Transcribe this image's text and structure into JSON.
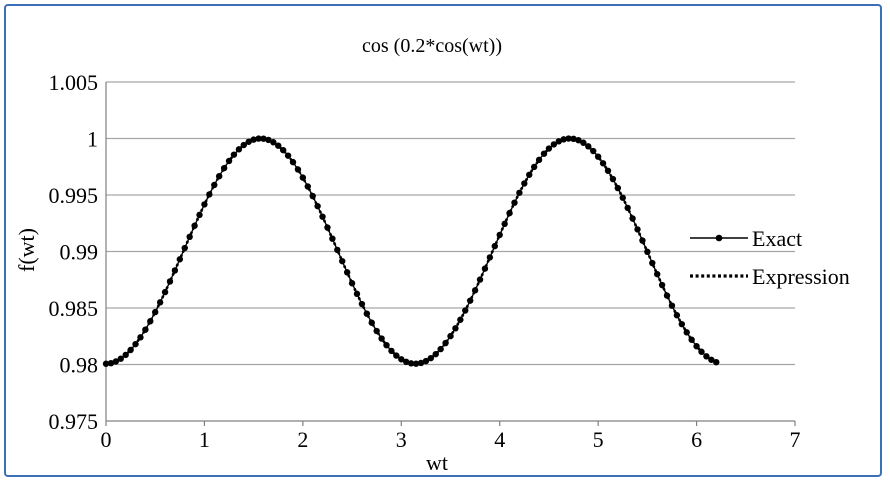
{
  "chart_data": {
    "type": "scatter",
    "title": "cos (0.2*cos(wt))",
    "xlabel": "wt",
    "ylabel": "f(wt)",
    "xlim": [
      0,
      7
    ],
    "ylim": [
      0.975,
      1.005
    ],
    "x_ticks": [
      0,
      1,
      2,
      3,
      4,
      5,
      6,
      7
    ],
    "x_tick_labels": [
      "0",
      "1",
      "2",
      "3",
      "4",
      "5",
      "6",
      "7"
    ],
    "y_ticks": [
      0.975,
      0.98,
      0.985,
      0.99,
      0.995,
      1,
      1.005
    ],
    "y_tick_labels": [
      "0.975",
      "0.98",
      "0.985",
      "0.99",
      "0.995",
      "1",
      "1.005"
    ],
    "grid": "horizontal",
    "legend_position": "right",
    "series": [
      {
        "name": "Exact",
        "style": "line-with-markers",
        "x_start": 0.0,
        "x_end": 6.2,
        "x_step": 0.05,
        "formula": "cos(0.2*cos(wt))",
        "sample_values": [
          {
            "x": 0,
            "y": 0.98
          },
          {
            "x": 1.57,
            "y": 1
          },
          {
            "x": 3.14,
            "y": 0.98
          },
          {
            "x": 4.71,
            "y": 1
          },
          {
            "x": 6.2,
            "y": 0.98
          }
        ]
      },
      {
        "name": "Expression",
        "style": "dotted",
        "x_start": 0.0,
        "x_end": 6.2,
        "x_step": 0.05,
        "formula": "cos(0.2*cos(wt))"
      }
    ],
    "colors": {
      "line": "#000000",
      "grid": "#a6a6a6",
      "frame": "#3b6fb6"
    }
  }
}
